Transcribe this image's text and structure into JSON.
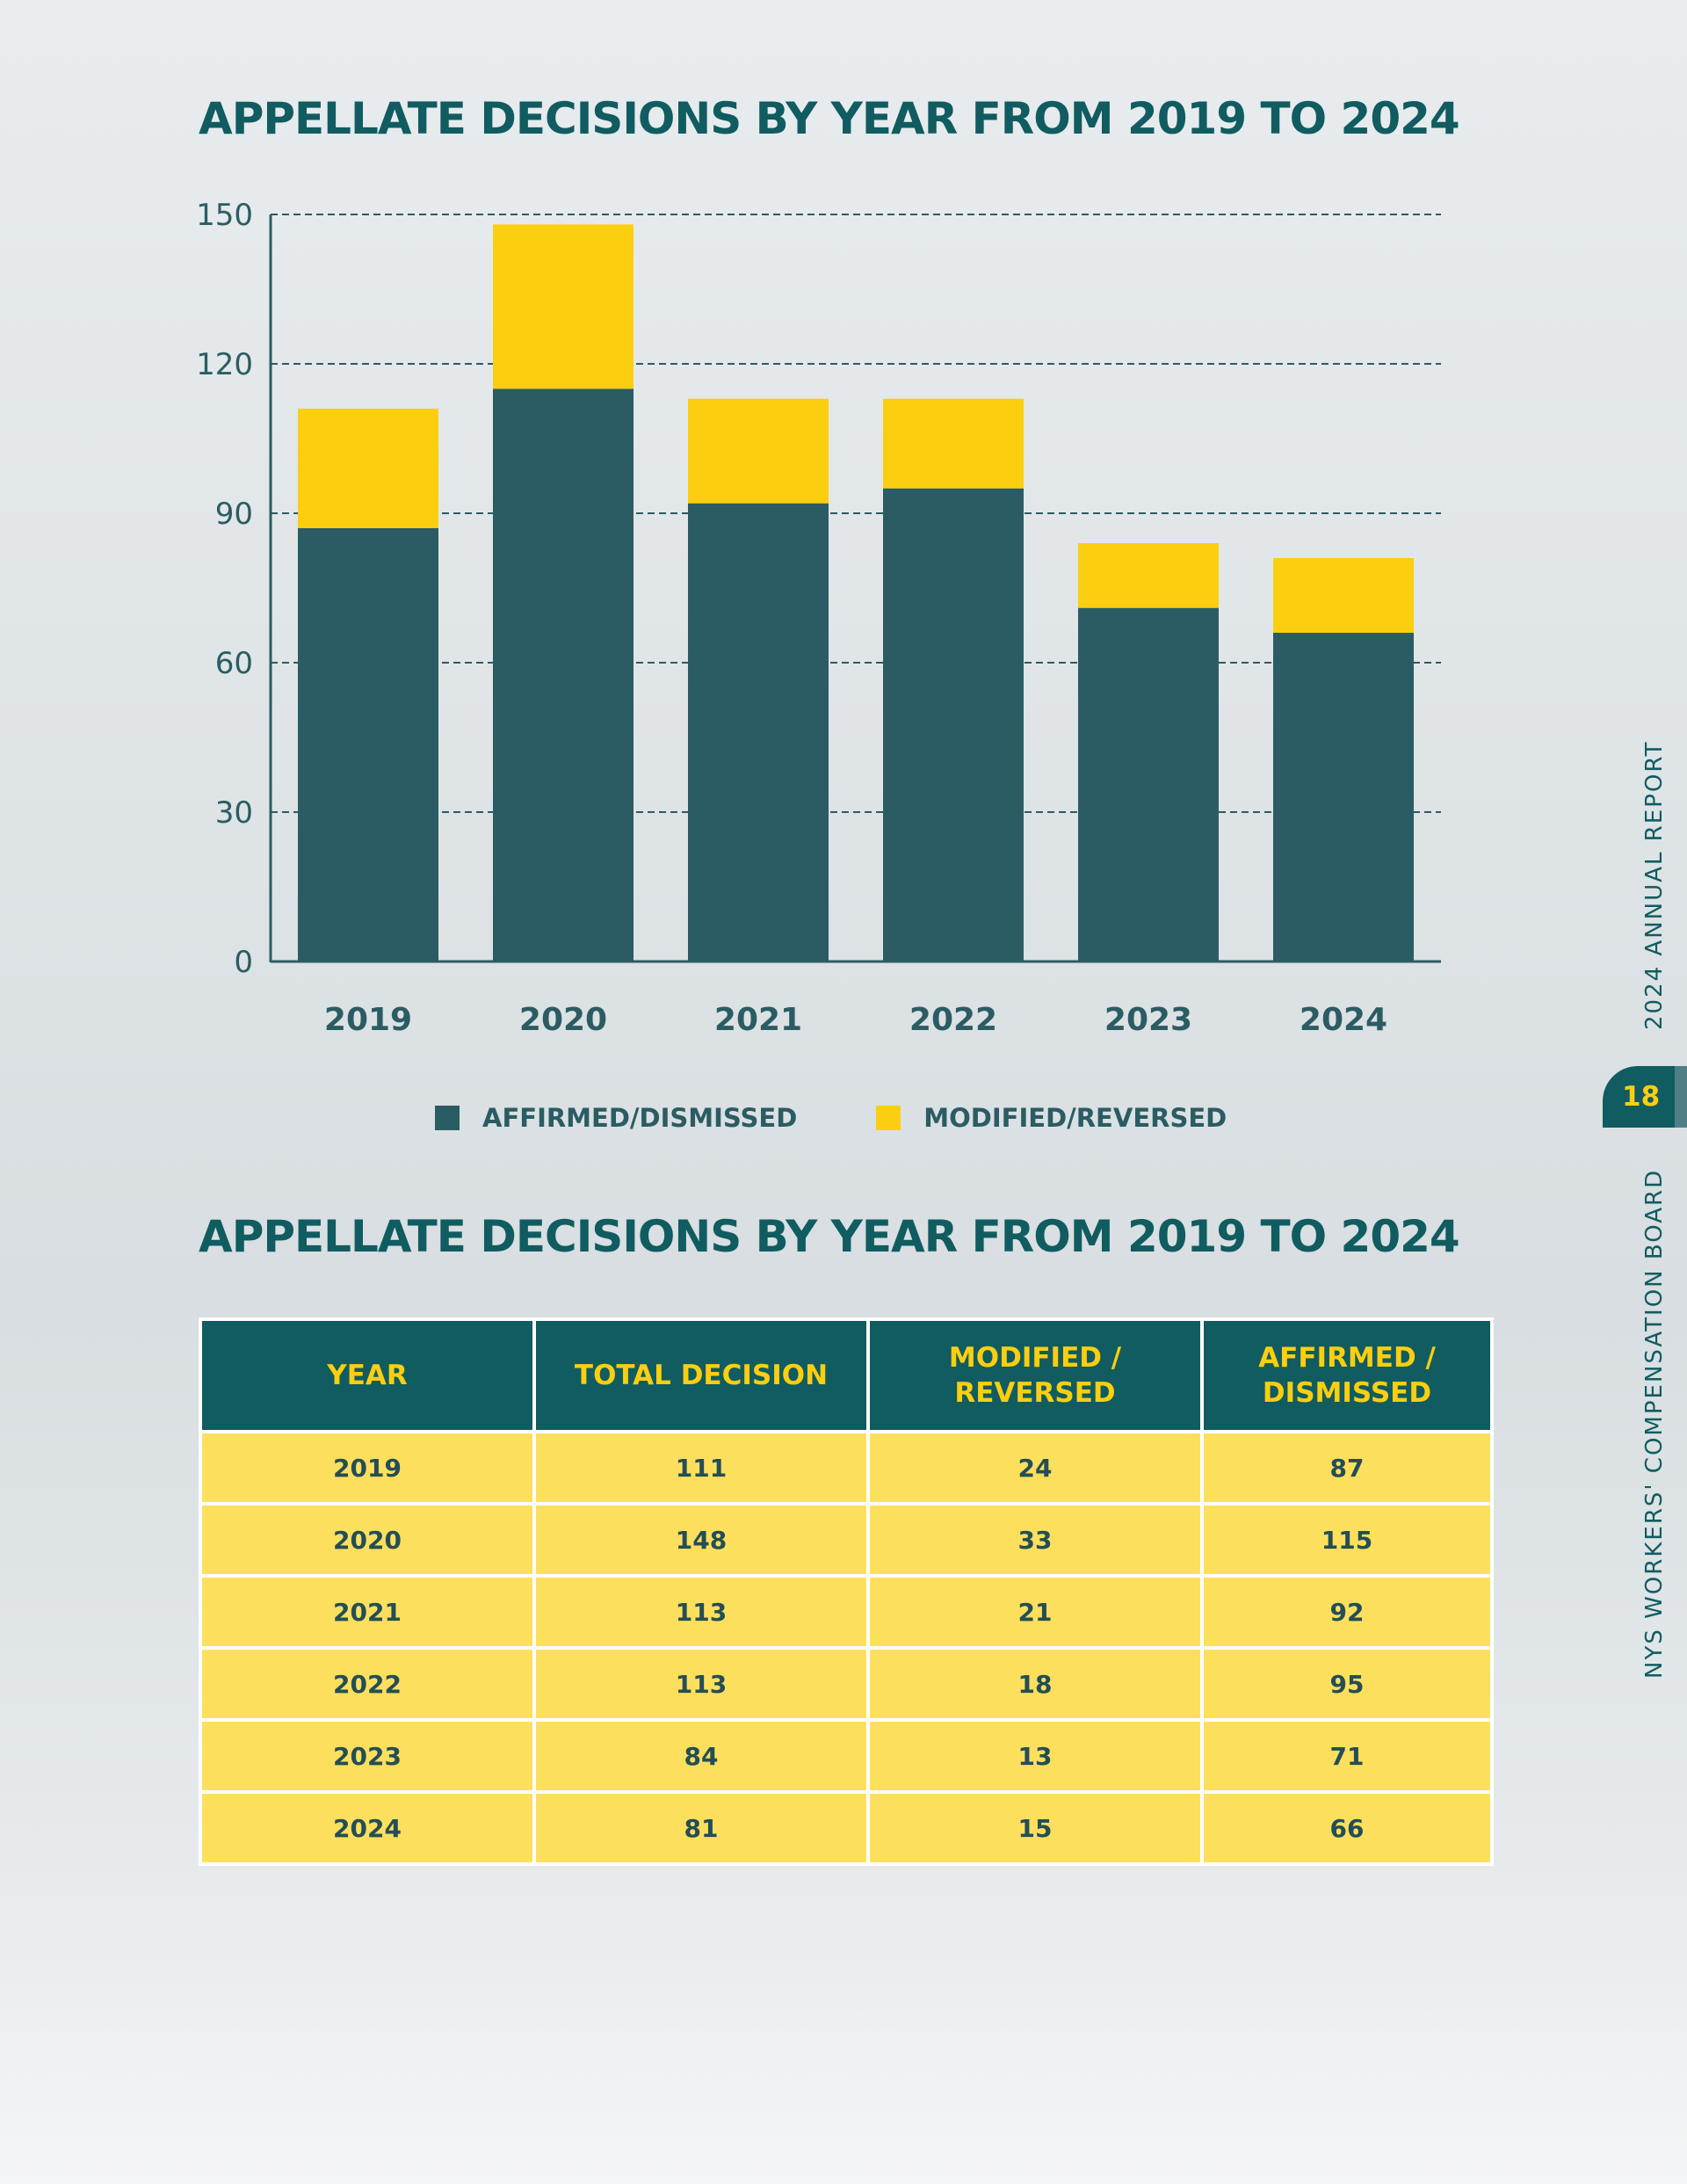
{
  "chart_title": "APPELLATE DECISIONS BY YEAR FROM 2019 TO 2024",
  "table_title": "APPELLATE DECISIONS BY YEAR FROM 2019 TO 2024",
  "side_labels": {
    "report": "2024 ANNUAL REPORT",
    "org": "NYS WORKERS' COMPENSATION BOARD",
    "page_number": "18"
  },
  "colors": {
    "affirmed": "#2b5c63",
    "modified": "#fcce10",
    "header_bg": "#105c60",
    "header_text": "#fcce10",
    "cell_bg": "#fddf5e"
  },
  "chart_data": {
    "type": "bar",
    "stacked": true,
    "title": "APPELLATE DECISIONS BY YEAR FROM 2019 TO 2024",
    "categories": [
      "2019",
      "2020",
      "2021",
      "2022",
      "2023",
      "2024"
    ],
    "series": [
      {
        "name": "AFFIRMED/DISMISSED",
        "values": [
          87,
          115,
          92,
          95,
          71,
          66
        ],
        "color": "#2b5c63"
      },
      {
        "name": "MODIFIED/REVERSED",
        "values": [
          24,
          33,
          21,
          18,
          13,
          15
        ],
        "color": "#fcce10"
      }
    ],
    "ylim": [
      0,
      150
    ],
    "yticks": [
      "0",
      "30",
      "60",
      "90",
      "120",
      "150"
    ],
    "xlabel": "",
    "ylabel": "",
    "grid": "dashed horizontal",
    "legend": "bottom"
  },
  "table": {
    "headers": [
      "YEAR",
      "TOTAL DECISION",
      "MODIFIED / REVERSED",
      "AFFIRMED / DISMISSED"
    ],
    "header_lines": [
      [
        "YEAR"
      ],
      [
        "TOTAL DECISION"
      ],
      [
        "MODIFIED /",
        "REVERSED"
      ],
      [
        "AFFIRMED /",
        "DISMISSED"
      ]
    ],
    "rows": [
      [
        "2019",
        "111",
        "24",
        "87"
      ],
      [
        "2020",
        "148",
        "33",
        "115"
      ],
      [
        "2021",
        "113",
        "21",
        "92"
      ],
      [
        "2022",
        "113",
        "18",
        "95"
      ],
      [
        "2023",
        "84",
        "13",
        "71"
      ],
      [
        "2024",
        "81",
        "15",
        "66"
      ]
    ]
  }
}
